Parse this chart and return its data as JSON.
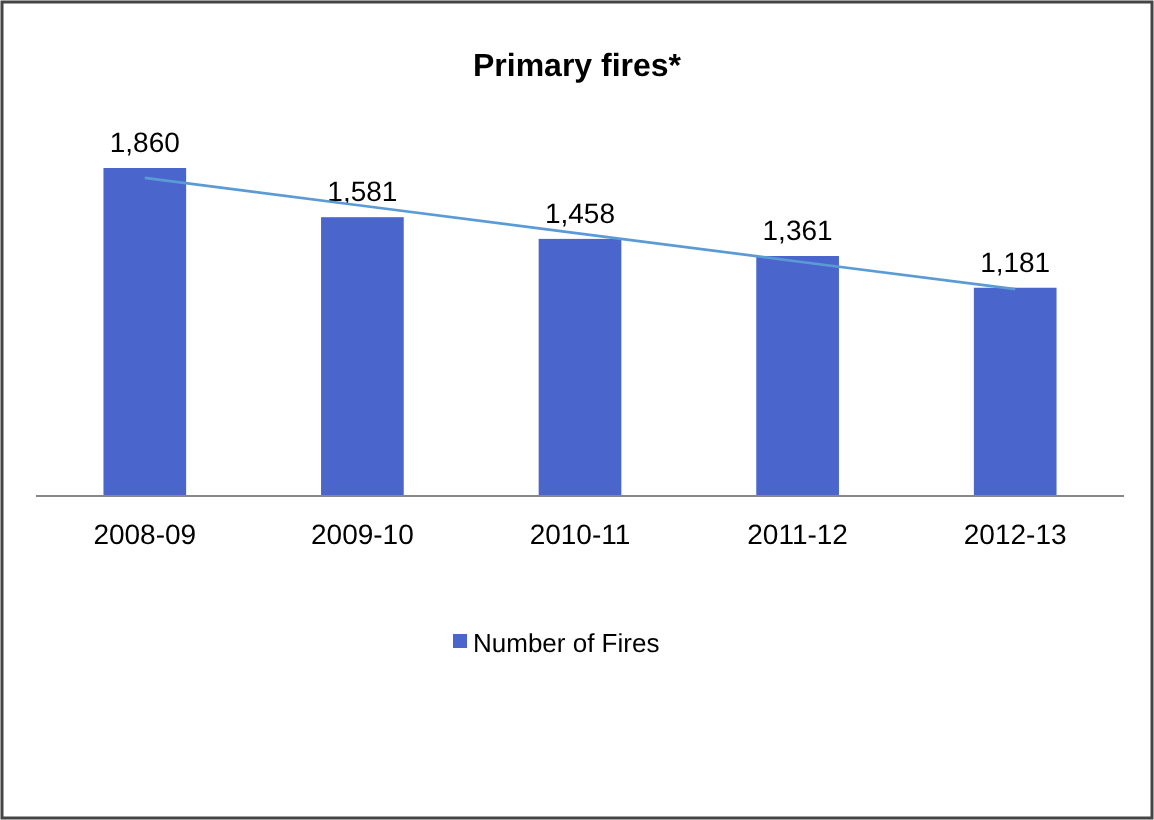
{
  "chart_data": {
    "type": "bar",
    "title": "Primary fires*",
    "categories": [
      "2008-09",
      "2009-10",
      "2010-11",
      "2011-12",
      "2012-13"
    ],
    "series": [
      {
        "name": "Number of Fires",
        "color": "#4a66cc",
        "values": [
          1860,
          1581,
          1458,
          1361,
          1181
        ],
        "value_labels": [
          "1,860",
          "1,581",
          "1,458",
          "1,361",
          "1,181"
        ]
      },
      {
        "type": "line",
        "color": "#5b9bd5",
        "values": [
          1804,
          1646,
          1488,
          1330,
          1173
        ],
        "marker": "none"
      }
    ],
    "legend": "bottom"
  }
}
